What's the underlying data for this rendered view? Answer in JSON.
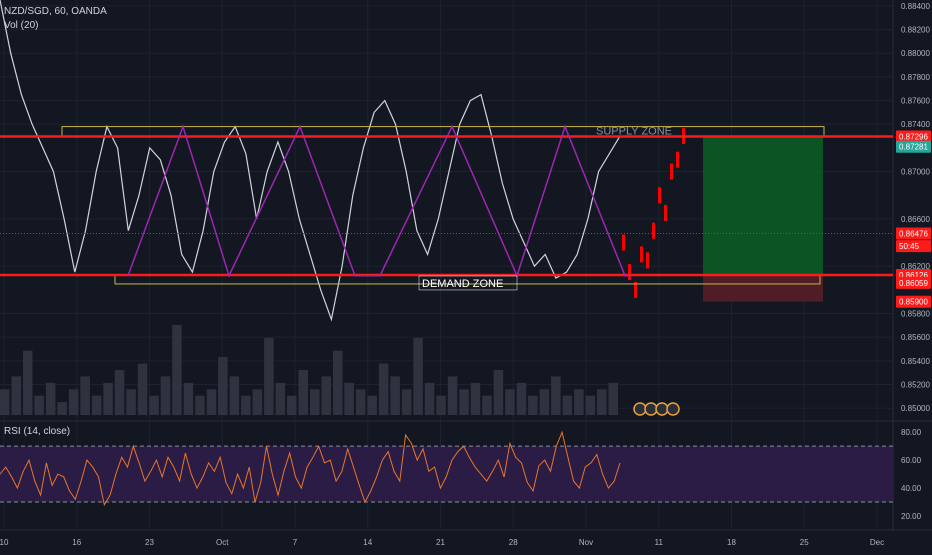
{
  "header": {
    "symbol_line": "NZD/SGD, 60, OANDA",
    "volume_label": "Vol (20)",
    "rsi_label": "RSI (14, close)"
  },
  "colors": {
    "background": "#131722",
    "grid": "#1e2230",
    "candle_up": "#d1d4dc",
    "candle_down": "#d1d4dc",
    "recent_candles": "#ff0000",
    "level_line": "#ff1a1a",
    "zone_outline": "#c8b74a",
    "pattern_line": "#9c27b0",
    "target_box": "#0c5f24",
    "stop_box": "#5a1e26",
    "rsi_line": "#e8762b",
    "rsi_band": "#2a1c45",
    "volume": "#2f3340"
  },
  "icons": [
    "earnings-icon",
    "dividend-icon",
    "split-icon",
    "news-icon"
  ],
  "chart_data": [
    {
      "type": "line",
      "panel": "price",
      "title": "NZD/SGD, 60, OANDA",
      "ylim": [
        0.849,
        0.8845
      ],
      "yticks": [
        "0.88400",
        "0.88200",
        "0.88000",
        "0.87800",
        "0.87600",
        "0.87400",
        "0.87000",
        "0.86600",
        "0.86200",
        "0.85800",
        "0.85600",
        "0.85400",
        "0.85200",
        "0.85000"
      ],
      "price_tags": [
        {
          "label": "0.87296",
          "value": 0.87296,
          "color": "#ff1a1a"
        },
        {
          "label": "0.87281",
          "value": 0.8721,
          "color": "#26a69a"
        },
        {
          "label": "0.86476",
          "value": 0.86476,
          "color": "#ff1a1a"
        },
        {
          "label": "50:45",
          "value": 0.8637,
          "color": "#ff1a1a"
        },
        {
          "label": "0.86126",
          "value": 0.86126,
          "color": "#ff1a1a"
        },
        {
          "label": "0.86059",
          "value": 0.86059,
          "color": "#ff1a1a"
        },
        {
          "label": "0.85900",
          "value": 0.859,
          "color": "#ff1a1a"
        }
      ],
      "xticks": [
        "10",
        "16",
        "23",
        "Oct",
        "7",
        "14",
        "21",
        "28",
        "Nov",
        "11",
        "18",
        "25",
        "Dec"
      ],
      "annotations": [
        "SUPPLY ZONE",
        "DEMAND ZONE"
      ],
      "levels": {
        "supply": 0.87296,
        "demand": 0.86126,
        "zone_top": 0.8738,
        "zone_bottom": 0.8605,
        "target": 0.87296,
        "entry": 0.86126,
        "stop": 0.859
      },
      "pattern_zigzag": [
        {
          "x": "Sep 23",
          "y": 0.8612
        },
        {
          "x": "Sep 27",
          "y": 0.8738
        },
        {
          "x": "Oct 01",
          "y": 0.8612
        },
        {
          "x": "Oct 07",
          "y": 0.8738
        },
        {
          "x": "Oct 14",
          "y": 0.8612
        },
        {
          "x": "Oct 17",
          "y": 0.8612
        },
        {
          "x": "Oct 23",
          "y": 0.8738
        },
        {
          "x": "Oct 28",
          "y": 0.8612
        },
        {
          "x": "Nov 01",
          "y": 0.8738
        },
        {
          "x": "Nov 08",
          "y": 0.8612
        },
        {
          "x": "Nov 10",
          "y": 0.8612
        }
      ],
      "series": [
        {
          "values": [
            0.8845,
            0.88,
            0.8765,
            0.874,
            0.872,
            0.87,
            0.866,
            0.8615,
            0.865,
            0.87,
            0.8738,
            0.872,
            0.865,
            0.868,
            0.872,
            0.871,
            0.868,
            0.863,
            0.8615,
            0.865,
            0.87,
            0.8725,
            0.8738,
            0.8715,
            0.866,
            0.87,
            0.8725,
            0.87,
            0.866,
            0.863,
            0.86,
            0.8575,
            0.862,
            0.868,
            0.872,
            0.875,
            0.876,
            0.874,
            0.87,
            0.865,
            0.863,
            0.866,
            0.87,
            0.874,
            0.876,
            0.8765,
            0.873,
            0.869,
            0.866,
            0.864,
            0.862,
            0.863,
            0.861,
            0.8615,
            0.863,
            0.866,
            0.87,
            0.8715,
            0.873
          ]
        }
      ]
    },
    {
      "type": "bar",
      "panel": "volume",
      "title": "Vol (20)",
      "values": [
        4,
        6,
        10,
        3,
        5,
        2,
        4,
        6,
        3,
        5,
        7,
        4,
        8,
        3,
        6,
        14,
        5,
        3,
        4,
        9,
        6,
        3,
        4,
        12,
        5,
        3,
        7,
        4,
        6,
        10,
        5,
        4,
        3,
        8,
        6,
        4,
        12,
        5,
        3,
        6,
        4,
        5,
        3,
        7,
        4,
        5,
        3,
        4,
        6,
        3,
        4,
        3,
        4,
        5
      ]
    },
    {
      "type": "line",
      "panel": "rsi",
      "title": "RSI (14, close)",
      "ylim": [
        10,
        88
      ],
      "yticks": [
        "80.00",
        "60.00",
        "40.00",
        "20.00"
      ],
      "band": [
        30,
        70
      ],
      "values": [
        50,
        55,
        48,
        40,
        52,
        60,
        45,
        35,
        58,
        42,
        50,
        48,
        38,
        32,
        45,
        60,
        55,
        48,
        28,
        35,
        50,
        62,
        55,
        70,
        58,
        45,
        52,
        60,
        48,
        62,
        55,
        45,
        65,
        50,
        40,
        48,
        58,
        52,
        62,
        44,
        36,
        50,
        40,
        55,
        30,
        44,
        70,
        50,
        35,
        52,
        65,
        48,
        40,
        55,
        62,
        70,
        58,
        60,
        45,
        52,
        68,
        55,
        42,
        30,
        38,
        48,
        60,
        66,
        52,
        45,
        78,
        72,
        60,
        68,
        52,
        55,
        40,
        48,
        60,
        66,
        70,
        62,
        55,
        50,
        45,
        52,
        60,
        48,
        72,
        62,
        58,
        44,
        38,
        56,
        60,
        52,
        70,
        80,
        62,
        45,
        40,
        55,
        58,
        64,
        50,
        40,
        45,
        58
      ]
    }
  ]
}
